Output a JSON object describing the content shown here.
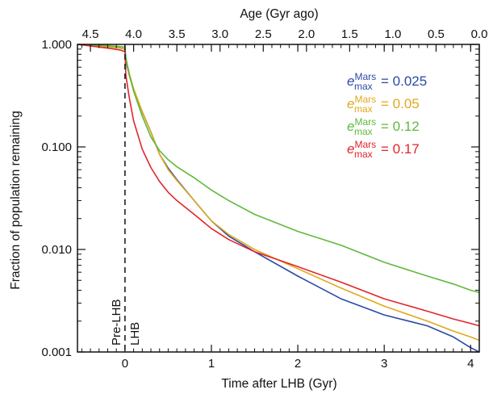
{
  "chart_data": {
    "type": "line",
    "xlabel": "Time after LHB (Gyr)",
    "ylabel": "Fraction of population remaining",
    "x2label": "Age (Gyr ago)",
    "xlim": [
      -0.55,
      4.1
    ],
    "ylim": [
      0.001,
      1.0
    ],
    "yscale": "log",
    "x_ticks": [
      "0",
      "1",
      "2",
      "3",
      "4"
    ],
    "x_tick_values": [
      0,
      1,
      2,
      3,
      4
    ],
    "y_ticks": [
      "1.000",
      "0.100",
      "0.010",
      "0.001"
    ],
    "y_tick_values": [
      1.0,
      0.1,
      0.01,
      0.001
    ],
    "x2_ticks": [
      "4.5",
      "4.0",
      "3.5",
      "3.0",
      "2.5",
      "2.0",
      "1.5",
      "1.0",
      "0.5",
      "0.0"
    ],
    "x2_tick_values": [
      4.5,
      4.0,
      3.5,
      3.0,
      2.5,
      2.0,
      1.5,
      1.0,
      0.5,
      0.0
    ],
    "vline": {
      "x": 0,
      "style": "dashed"
    },
    "annotations": {
      "pre": "Pre-LHB",
      "post": "LHB"
    },
    "legend_position": "top-right",
    "series": [
      {
        "name": "e_max^Mars = 0.025",
        "label_main": "e",
        "label_sup": "Mars",
        "label_sub": "max",
        "label_value": "= 0.025",
        "color": "#2a4aa8",
        "x": [
          -0.55,
          -0.2,
          -0.05,
          0.0,
          0.01,
          0.05,
          0.1,
          0.2,
          0.3,
          0.4,
          0.5,
          0.6,
          0.8,
          1.0,
          1.2,
          1.5,
          2.0,
          2.5,
          3.0,
          3.5,
          3.8,
          4.0,
          4.1
        ],
        "y": [
          1.0,
          0.95,
          0.92,
          0.9,
          0.7,
          0.5,
          0.36,
          0.22,
          0.14,
          0.085,
          0.062,
          0.048,
          0.03,
          0.019,
          0.0135,
          0.0095,
          0.0055,
          0.0033,
          0.0023,
          0.0018,
          0.0014,
          0.0011,
          0.001
        ]
      },
      {
        "name": "e_max^Mars = 0.05",
        "label_main": "e",
        "label_sup": "Mars",
        "label_sub": "max",
        "label_value": "= 0.05",
        "color": "#e0a81c",
        "x": [
          -0.55,
          -0.2,
          -0.05,
          0.0,
          0.01,
          0.05,
          0.1,
          0.2,
          0.3,
          0.4,
          0.5,
          0.6,
          0.8,
          1.0,
          1.2,
          1.5,
          2.0,
          2.5,
          3.0,
          3.5,
          3.8,
          4.0,
          4.1
        ],
        "y": [
          1.0,
          0.95,
          0.92,
          0.9,
          0.72,
          0.52,
          0.37,
          0.22,
          0.14,
          0.085,
          0.06,
          0.047,
          0.03,
          0.019,
          0.014,
          0.01,
          0.0065,
          0.0042,
          0.0028,
          0.002,
          0.0016,
          0.0014,
          0.0013
        ]
      },
      {
        "name": "e_max^Mars = 0.12",
        "label_main": "e",
        "label_sup": "Mars",
        "label_sub": "max",
        "label_value": "= 0.12",
        "color": "#5fb93c",
        "x": [
          -0.55,
          -0.2,
          -0.05,
          0.0,
          0.01,
          0.05,
          0.1,
          0.2,
          0.3,
          0.4,
          0.5,
          0.6,
          0.8,
          1.0,
          1.2,
          1.5,
          2.0,
          2.5,
          3.0,
          3.5,
          3.8,
          4.0,
          4.1
        ],
        "y": [
          1.0,
          0.97,
          0.95,
          0.94,
          0.75,
          0.5,
          0.35,
          0.2,
          0.125,
          0.092,
          0.075,
          0.064,
          0.05,
          0.038,
          0.03,
          0.022,
          0.015,
          0.011,
          0.0075,
          0.0055,
          0.0046,
          0.004,
          0.0038
        ]
      },
      {
        "name": "e_max^Mars = 0.17",
        "label_main": "e",
        "label_sup": "Mars",
        "label_sub": "max",
        "label_value": "= 0.17",
        "color": "#e0262b",
        "x": [
          -0.55,
          -0.2,
          -0.05,
          0.0,
          0.01,
          0.05,
          0.1,
          0.2,
          0.3,
          0.4,
          0.5,
          0.6,
          0.8,
          1.0,
          1.2,
          1.5,
          2.0,
          2.5,
          3.0,
          3.5,
          3.8,
          4.0,
          4.1
        ],
        "y": [
          1.0,
          0.92,
          0.88,
          0.85,
          0.5,
          0.3,
          0.18,
          0.095,
          0.063,
          0.046,
          0.036,
          0.03,
          0.022,
          0.016,
          0.0125,
          0.0095,
          0.0068,
          0.0048,
          0.0033,
          0.0025,
          0.0021,
          0.0019,
          0.0018
        ]
      }
    ]
  }
}
